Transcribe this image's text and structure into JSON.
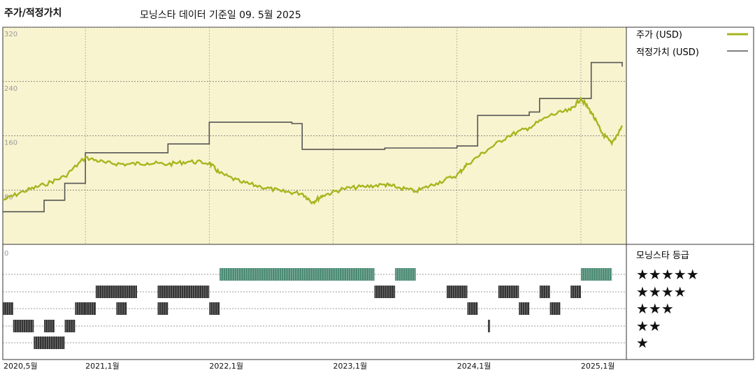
{
  "header": {
    "left_title": "주가/적정가치",
    "subtitle": "모닝스타 데이터 기준일 09. 5월 2025"
  },
  "legend": {
    "price_label": "주가 (USD)",
    "fair_label": "적정가치 (USD)",
    "rating_title": "모닝스타 등급"
  },
  "colors": {
    "price": "#a7b51e",
    "fair": "#555555",
    "plot_bg": "#f8f4cf",
    "rating5": "#4a8a73",
    "rating_dark": "#333333"
  },
  "chart_data": {
    "type": "line",
    "ylim": [
      0,
      320
    ],
    "yticks": [
      80,
      160,
      240,
      320
    ],
    "x_ticks": [
      "2020,5월",
      "2021,1월",
      "2022,1월",
      "2023,1월",
      "2024,1월",
      "2025,1월"
    ],
    "x_range": [
      "2020-05",
      "2025-05"
    ],
    "series": [
      {
        "name": "주가 (USD)",
        "values": [
          [
            "2020-05",
            65
          ],
          [
            "2020-07",
            78
          ],
          [
            "2020-09",
            88
          ],
          [
            "2020-11",
            100
          ],
          [
            "2021-01",
            128
          ],
          [
            "2021-03",
            120
          ],
          [
            "2021-05",
            118
          ],
          [
            "2021-07",
            120
          ],
          [
            "2021-09",
            118
          ],
          [
            "2021-11",
            122
          ],
          [
            "2022-01",
            120
          ],
          [
            "2022-02",
            105
          ],
          [
            "2022-04",
            92
          ],
          [
            "2022-06",
            85
          ],
          [
            "2022-08",
            78
          ],
          [
            "2022-10",
            75
          ],
          [
            "2022-11",
            62
          ],
          [
            "2022-12",
            72
          ],
          [
            "2023-02",
            82
          ],
          [
            "2023-04",
            85
          ],
          [
            "2023-06",
            88
          ],
          [
            "2023-07",
            85
          ],
          [
            "2023-09",
            78
          ],
          [
            "2023-11",
            90
          ],
          [
            "2024-01",
            102
          ],
          [
            "2024-02",
            118
          ],
          [
            "2024-04",
            140
          ],
          [
            "2024-06",
            160
          ],
          [
            "2024-08",
            172
          ],
          [
            "2024-10",
            190
          ],
          [
            "2024-12",
            198
          ],
          [
            "2025-01",
            215
          ],
          [
            "2025-02",
            195
          ],
          [
            "2025-03",
            165
          ],
          [
            "2025-04",
            148
          ],
          [
            "2025-05",
            175
          ]
        ]
      },
      {
        "name": "적정가치 (USD)",
        "values": [
          [
            "2020-05",
            48
          ],
          [
            "2020-08",
            48
          ],
          [
            "2020-09",
            65
          ],
          [
            "2020-11",
            90
          ],
          [
            "2021-01",
            135
          ],
          [
            "2021-06",
            135
          ],
          [
            "2021-09",
            148
          ],
          [
            "2021-12",
            148
          ],
          [
            "2022-01",
            180
          ],
          [
            "2022-07",
            180
          ],
          [
            "2022-09",
            178
          ],
          [
            "2022-10",
            140
          ],
          [
            "2023-06",
            142
          ],
          [
            "2023-07",
            142
          ],
          [
            "2024-01",
            145
          ],
          [
            "2024-03",
            190
          ],
          [
            "2024-08",
            195
          ],
          [
            "2024-09",
            215
          ],
          [
            "2025-01",
            215
          ],
          [
            "2025-02",
            268
          ],
          [
            "2025-05",
            262
          ]
        ]
      }
    ],
    "rating": {
      "levels": [
        "★★★★★",
        "★★★★",
        "★★★",
        "★★",
        "★"
      ],
      "segments": [
        {
          "stars": 1,
          "from": "2020-08",
          "to": "2020-11"
        },
        {
          "stars": 2,
          "from": "2020-06",
          "to": "2020-08"
        },
        {
          "stars": 2,
          "from": "2020-09",
          "to": "2020-10"
        },
        {
          "stars": 2,
          "from": "2020-11",
          "to": "2020-12"
        },
        {
          "stars": 2,
          "from": "2024-04",
          "to": "2024-04"
        },
        {
          "stars": 3,
          "from": "2020-05",
          "to": "2020-06"
        },
        {
          "stars": 3,
          "from": "2020-12",
          "to": "2021-01"
        },
        {
          "stars": 3,
          "from": "2021-01",
          "to": "2021-02"
        },
        {
          "stars": 3,
          "from": "2021-04",
          "to": "2021-05"
        },
        {
          "stars": 3,
          "from": "2021-08",
          "to": "2021-09"
        },
        {
          "stars": 3,
          "from": "2022-01",
          "to": "2022-02"
        },
        {
          "stars": 3,
          "from": "2024-02",
          "to": "2024-03"
        },
        {
          "stars": 3,
          "from": "2024-07",
          "to": "2024-08"
        },
        {
          "stars": 3,
          "from": "2024-10",
          "to": "2024-11"
        },
        {
          "stars": 4,
          "from": "2021-02",
          "to": "2021-06"
        },
        {
          "stars": 4,
          "from": "2021-08",
          "to": "2022-01"
        },
        {
          "stars": 4,
          "from": "2023-05",
          "to": "2023-07"
        },
        {
          "stars": 4,
          "from": "2023-12",
          "to": "2024-02"
        },
        {
          "stars": 4,
          "from": "2024-05",
          "to": "2024-07"
        },
        {
          "stars": 4,
          "from": "2024-09",
          "to": "2024-10"
        },
        {
          "stars": 4,
          "from": "2024-12",
          "to": "2025-01"
        },
        {
          "stars": 5,
          "from": "2022-02",
          "to": "2023-05"
        },
        {
          "stars": 5,
          "from": "2023-07",
          "to": "2023-09"
        },
        {
          "stars": 5,
          "from": "2025-01",
          "to": "2025-04"
        }
      ]
    },
    "grid": true
  }
}
